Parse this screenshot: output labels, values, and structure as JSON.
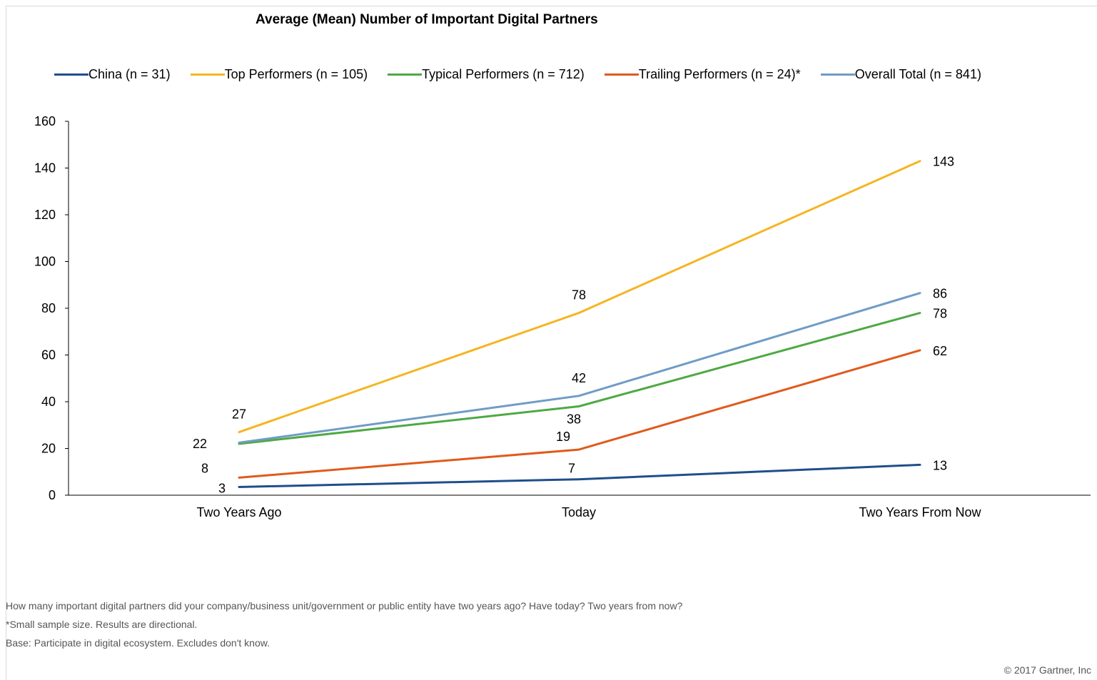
{
  "chart_data": {
    "type": "line",
    "title": "Average (Mean) Number of Important Digital Partners",
    "categories": [
      "Two Years Ago",
      "Today",
      "Two Years From Now"
    ],
    "ylim": [
      0,
      160
    ],
    "yticks": [
      0,
      20,
      40,
      60,
      80,
      100,
      120,
      140,
      160
    ],
    "legend_position": "top",
    "grid": false,
    "series": [
      {
        "name": "China (n = 31)",
        "color": "#1f4e8c",
        "values": [
          3.5,
          6.8,
          13
        ],
        "labels": [
          "3",
          "7",
          "13"
        ]
      },
      {
        "name": "Top Performers (n = 105)",
        "color": "#f5b522",
        "values": [
          27,
          78,
          143
        ],
        "labels": [
          "27",
          "78",
          "143"
        ]
      },
      {
        "name": "Typical Performers (n = 712)",
        "color": "#4ea944",
        "values": [
          22,
          38,
          78
        ],
        "labels": [
          "22",
          "38",
          "78"
        ]
      },
      {
        "name": "Trailing Performers (n = 24)*",
        "color": "#e05a1b",
        "values": [
          7.5,
          19.5,
          62
        ],
        "labels": [
          "8",
          "19",
          "62"
        ]
      },
      {
        "name": "Overall Total (n = 841)",
        "color": "#6f9cc6",
        "values": [
          22.5,
          42.5,
          86.5
        ],
        "labels": [
          null,
          "42",
          "86"
        ]
      }
    ]
  },
  "notes": {
    "question": "How many important digital partners did your company/business unit/government or public entity have two years ago? Have today? Two years from now?",
    "sample": "*Small sample size. Results are directional.",
    "base": "Base: Participate in digital ecosystem. Excludes don't know."
  },
  "copyright": "© 2017 Gartner, Inc"
}
